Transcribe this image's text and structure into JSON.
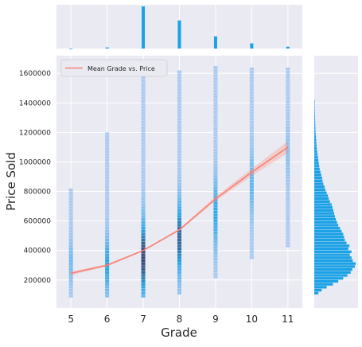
{
  "chart_data": {
    "type": "joint-histogram",
    "xlabel": "Grade",
    "ylabel": "Price Sold",
    "x_ticks": [
      5,
      6,
      7,
      8,
      9,
      10,
      11
    ],
    "y_ticks": [
      200000,
      400000,
      600000,
      800000,
      1000000,
      1200000,
      1400000,
      1600000
    ],
    "xlim": [
      4.6,
      11.4
    ],
    "ylim": [
      10000,
      1720000
    ],
    "legend": {
      "label": "Mean Grade vs. Price",
      "position": "top-left"
    },
    "grid": true,
    "colors": {
      "background": "#eaeaf2",
      "histogram": "#1ba1e6",
      "histogram_light": "#a8c8f0",
      "histogram_dark": "#2d3e6e",
      "mean_line": "#fa8072",
      "grid": "#ffffff"
    },
    "mean_line": {
      "name": "Mean Grade vs. Price",
      "x": [
        5,
        6,
        7,
        8,
        9,
        10,
        11
      ],
      "y": [
        245000,
        300000,
        400000,
        540000,
        750000,
        930000,
        1100000
      ],
      "ci_halfwidth": [
        12000,
        8000,
        5000,
        7000,
        15000,
        25000,
        40000
      ]
    },
    "joint_columns": [
      {
        "grade": 5,
        "ymin": 80000,
        "ymax": 810000,
        "peak": 320000,
        "weight": 0.25
      },
      {
        "grade": 6,
        "ymin": 80000,
        "ymax": 1190000,
        "peak": 300000,
        "weight": 0.55
      },
      {
        "grade": 7,
        "ymin": 80000,
        "ymax": 1620000,
        "peak": 350000,
        "weight": 1.0
      },
      {
        "grade": 8,
        "ymin": 100000,
        "ymax": 1620000,
        "peak": 480000,
        "weight": 0.85
      },
      {
        "grade": 9,
        "ymin": 210000,
        "ymax": 1640000,
        "peak": 650000,
        "weight": 0.5
      },
      {
        "grade": 10,
        "ymin": 340000,
        "ymax": 1640000,
        "peak": 850000,
        "weight": 0.3
      },
      {
        "grade": 11,
        "ymin": 420000,
        "ymax": 1640000,
        "peak": 1050000,
        "weight": 0.15
      }
    ],
    "marginal_x": {
      "categories": [
        5,
        6,
        7,
        8,
        9,
        10,
        11
      ],
      "counts": [
        25,
        240,
        9000,
        6000,
        2600,
        1100,
        390
      ]
    },
    "marginal_y": {
      "bin_centers": [
        110000,
        130000,
        150000,
        170000,
        190000,
        210000,
        230000,
        250000,
        270000,
        290000,
        310000,
        330000,
        350000,
        370000,
        390000,
        410000,
        430000,
        450000,
        470000,
        490000,
        510000,
        530000,
        550000,
        570000,
        590000,
        610000,
        630000,
        650000,
        670000,
        690000,
        710000,
        730000,
        750000,
        770000,
        790000,
        810000,
        830000,
        850000,
        870000,
        890000,
        910000,
        930000,
        950000,
        970000,
        990000,
        1010000,
        1030000,
        1050000,
        1070000,
        1090000,
        1110000,
        1130000,
        1150000,
        1170000,
        1190000,
        1210000,
        1230000,
        1250000,
        1270000,
        1290000,
        1310000,
        1330000,
        1350000,
        1370000,
        1390000,
        1410000
      ],
      "counts": [
        0.1,
        0.18,
        0.3,
        0.45,
        0.58,
        0.7,
        0.8,
        0.88,
        0.92,
        0.98,
        1.0,
        0.93,
        0.9,
        0.86,
        0.9,
        0.82,
        0.85,
        0.78,
        0.74,
        0.72,
        0.7,
        0.66,
        0.62,
        0.58,
        0.55,
        0.52,
        0.5,
        0.48,
        0.46,
        0.44,
        0.42,
        0.38,
        0.35,
        0.33,
        0.3,
        0.27,
        0.25,
        0.22,
        0.2,
        0.19,
        0.17,
        0.15,
        0.13,
        0.12,
        0.11,
        0.1,
        0.09,
        0.08,
        0.07,
        0.06,
        0.055,
        0.05,
        0.045,
        0.04,
        0.035,
        0.03,
        0.028,
        0.025,
        0.022,
        0.02,
        0.018,
        0.016,
        0.014,
        0.012,
        0.01,
        0.008
      ]
    }
  }
}
